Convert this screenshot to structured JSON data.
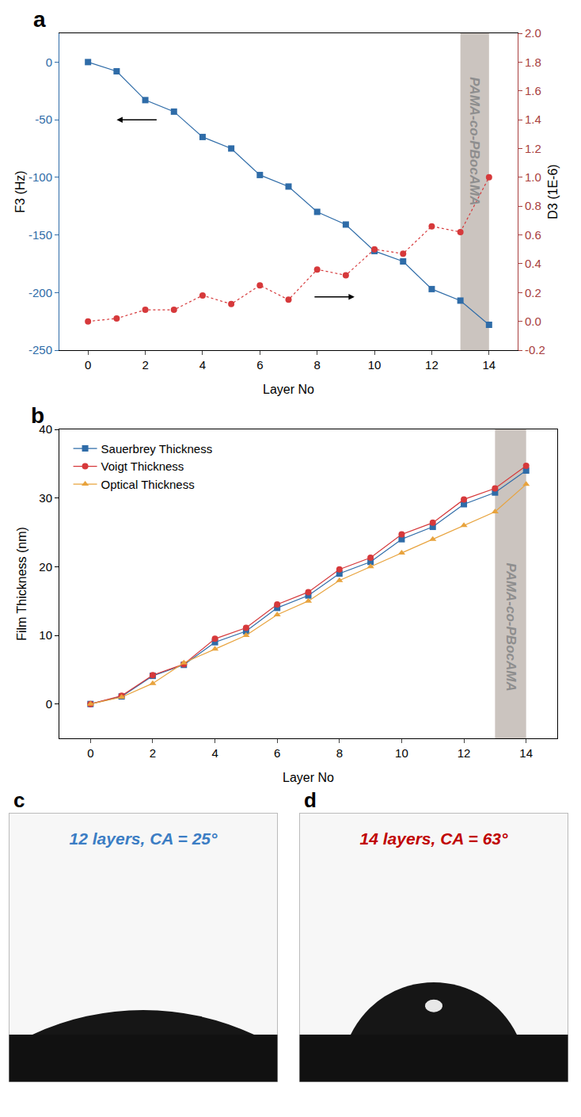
{
  "chart_data": [
    {
      "panel": "a",
      "type": "line",
      "grid": false,
      "x": [
        0,
        1,
        2,
        3,
        4,
        5,
        6,
        7,
        8,
        9,
        10,
        11,
        12,
        13,
        14
      ],
      "xlabel": "Layer No",
      "xlim": [
        -1,
        15
      ],
      "xticks": [
        0,
        2,
        4,
        6,
        8,
        10,
        12,
        14
      ],
      "ylabel": "F3 (Hz)",
      "ylim": [
        -250,
        25
      ],
      "yticks": [
        -250,
        -200,
        -150,
        -100,
        -50,
        0
      ],
      "y2label": "D3 (1E-6)",
      "y2lim": [
        -0.2,
        2.0
      ],
      "y2ticks": [
        -0.2,
        {
          "value": 0,
          "label": "0.0"
        },
        0.2,
        0.4,
        0.6,
        0.8,
        {
          "value": 1,
          "label": "1.0"
        },
        1.2,
        1.4,
        1.6,
        1.8,
        {
          "value": 2,
          "label": "2.0"
        }
      ],
      "shaded_region": {
        "x": [
          13,
          14
        ],
        "label": "PAMA-co-PBocAMA"
      },
      "series": [
        {
          "color": "#2f6ca8",
          "marker": "square",
          "line_style": "solid",
          "values": [
            0,
            -8,
            -33,
            -43,
            -65,
            -75,
            -98,
            -108,
            -130,
            -141,
            -164,
            -173,
            -197,
            -207,
            -228
          ]
        },
        {
          "color": "#d6393b",
          "marker": "circle",
          "line_style": "dotted",
          "axis": "y2",
          "values": [
            0,
            0.02,
            0.08,
            0.08,
            0.18,
            0.12,
            0.25,
            0.15,
            0.36,
            0.32,
            0.5,
            0.47,
            0.66,
            0.62,
            1.0
          ]
        }
      ]
    },
    {
      "panel": "b",
      "type": "line",
      "grid": false,
      "legend": "upper left",
      "x": [
        0,
        1,
        2,
        3,
        4,
        5,
        6,
        7,
        8,
        9,
        10,
        11,
        12,
        13,
        14
      ],
      "xlabel": "Layer No",
      "xlim": [
        -1,
        15
      ],
      "xticks": [
        0,
        2,
        4,
        6,
        8,
        10,
        12,
        14
      ],
      "ylabel": "Film Thickness (nm)",
      "ylim": [
        -5,
        40
      ],
      "yticks": [
        0,
        10,
        20,
        30,
        40
      ],
      "shaded_region": {
        "x": [
          13,
          14
        ],
        "label": "PAMA-co-PBocAMA"
      },
      "series": [
        {
          "name": "Sauerbrey Thickness",
          "color": "#2f6ca8",
          "marker": "square",
          "line_style": "solid",
          "values": [
            0,
            1.1,
            4.1,
            5.7,
            9.0,
            10.6,
            14.0,
            15.8,
            19.0,
            20.7,
            24.0,
            25.8,
            29.1,
            30.8,
            34.0
          ]
        },
        {
          "name": "Voigt Thickness",
          "color": "#d6393b",
          "marker": "circle",
          "line_style": "solid",
          "values": [
            0,
            1.2,
            4.2,
            5.8,
            9.5,
            11.1,
            14.5,
            16.3,
            19.6,
            21.3,
            24.7,
            26.4,
            29.8,
            31.4,
            34.7
          ]
        },
        {
          "name": "Optical Thickness",
          "color": "#e8a33d",
          "marker": "triangle",
          "line_style": "solid",
          "values": [
            0,
            1,
            3,
            6,
            8,
            10,
            13,
            15,
            18,
            20,
            22,
            24,
            26,
            28,
            32
          ]
        }
      ]
    }
  ],
  "photos": [
    {
      "panel": "c",
      "caption": "12 layers, CA = 25°",
      "color": "#3b7dc4"
    },
    {
      "panel": "d",
      "caption": "14 layers, CA = 63°",
      "color": "#c00000"
    }
  ]
}
